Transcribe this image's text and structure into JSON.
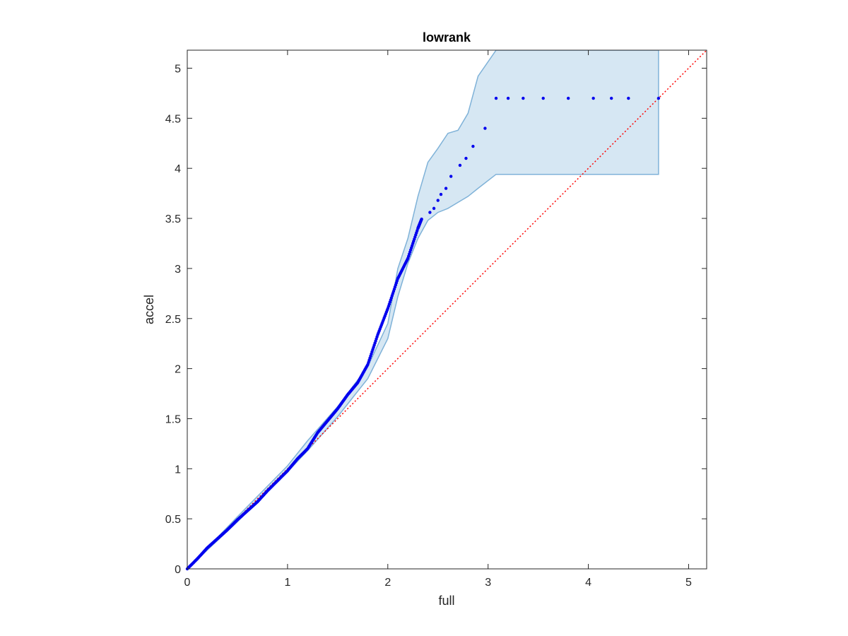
{
  "chart_data": {
    "type": "scatter",
    "title": "lowrank",
    "xlabel": "full",
    "ylabel": "accel",
    "xlim": [
      0,
      5.18
    ],
    "ylim": [
      0,
      5.18
    ],
    "xticks": [
      "0",
      "1",
      "2",
      "3",
      "4",
      "5"
    ],
    "yticks": [
      "0",
      "0.5",
      "1",
      "1.5",
      "2",
      "2.5",
      "3",
      "3.5",
      "4",
      "4.5",
      "5"
    ],
    "xtick_values": [
      0,
      1,
      2,
      3,
      4,
      5
    ],
    "ytick_values": [
      0,
      0.5,
      1,
      1.5,
      2,
      2.5,
      3,
      3.5,
      4,
      4.5,
      5
    ],
    "grid": false,
    "series_color": "#0000ee",
    "reference_line": {
      "style": "dotted",
      "color": "#ff0000",
      "from": [
        0,
        0
      ],
      "to": [
        5.18,
        5.18
      ]
    },
    "confidence_band": {
      "fill": "#d6e7f3",
      "stroke": "#7fb2d8",
      "x": [
        0,
        0.5,
        1.0,
        1.2,
        1.5,
        1.8,
        2.0,
        2.1,
        2.2,
        2.3,
        2.4,
        2.5,
        2.6,
        2.7,
        2.8,
        2.9,
        3.08,
        4.7
      ],
      "upper": [
        0,
        0.52,
        1.03,
        1.28,
        1.62,
        2.02,
        2.45,
        3.0,
        3.3,
        3.72,
        4.06,
        4.2,
        4.35,
        4.38,
        4.55,
        4.92,
        5.18,
        5.18
      ],
      "lower": [
        0,
        0.47,
        0.97,
        1.18,
        1.52,
        1.9,
        2.3,
        2.72,
        3.05,
        3.3,
        3.48,
        3.56,
        3.6,
        3.66,
        3.72,
        3.8,
        3.94,
        3.94
      ]
    },
    "curve_points": [
      [
        0,
        0
      ],
      [
        0.1,
        0.1
      ],
      [
        0.2,
        0.21
      ],
      [
        0.3,
        0.3
      ],
      [
        0.4,
        0.39
      ],
      [
        0.5,
        0.49
      ],
      [
        0.6,
        0.58
      ],
      [
        0.7,
        0.67
      ],
      [
        0.8,
        0.78
      ],
      [
        0.9,
        0.88
      ],
      [
        1.0,
        0.98
      ],
      [
        1.1,
        1.1
      ],
      [
        1.2,
        1.2
      ],
      [
        1.3,
        1.36
      ],
      [
        1.4,
        1.48
      ],
      [
        1.5,
        1.6
      ],
      [
        1.6,
        1.74
      ],
      [
        1.7,
        1.86
      ],
      [
        1.8,
        2.04
      ],
      [
        1.9,
        2.34
      ],
      [
        2.0,
        2.6
      ],
      [
        2.1,
        2.9
      ],
      [
        2.2,
        3.1
      ],
      [
        2.3,
        3.4
      ],
      [
        2.34,
        3.5
      ]
    ],
    "step_points": [
      [
        2.42,
        3.56
      ],
      [
        2.46,
        3.6
      ],
      [
        2.5,
        3.68
      ],
      [
        2.53,
        3.74
      ],
      [
        2.58,
        3.8
      ],
      [
        2.63,
        3.92
      ],
      [
        2.72,
        4.03
      ],
      [
        2.78,
        4.1
      ],
      [
        2.85,
        4.22
      ],
      [
        2.97,
        4.4
      ],
      [
        3.08,
        4.7
      ],
      [
        3.2,
        4.7
      ],
      [
        3.35,
        4.7
      ],
      [
        3.55,
        4.7
      ],
      [
        3.8,
        4.7
      ],
      [
        4.05,
        4.7
      ],
      [
        4.23,
        4.7
      ],
      [
        4.4,
        4.7
      ],
      [
        4.7,
        4.7
      ]
    ]
  }
}
